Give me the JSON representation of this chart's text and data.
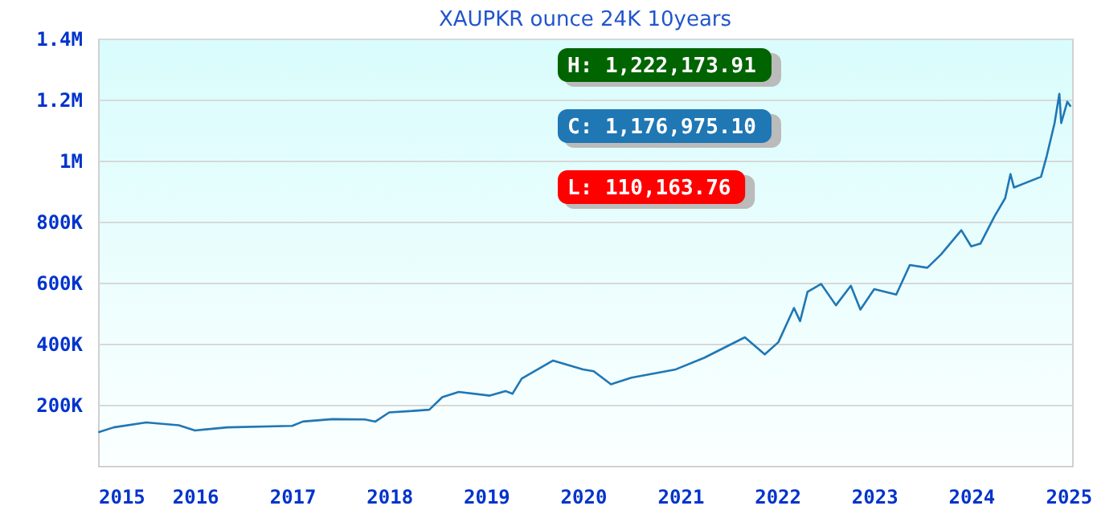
{
  "chart_data": {
    "type": "line",
    "title": "XAUPKR ounce 24K 10years",
    "annotations": [
      "H: 1,222,173.91",
      "C: 1,176,975.10",
      "L: 110,163.76"
    ],
    "x": [
      "2015-01-02",
      "2015-03-01",
      "2015-07-01",
      "2015-11-01",
      "2016-01-01",
      "2016-05-01",
      "2017-01-01",
      "2017-02-10",
      "2017-06-01",
      "2017-10-01",
      "2017-11-10",
      "2018-01-01",
      "2018-04-01",
      "2018-06-01",
      "2018-07-20",
      "2018-09-20",
      "2019-01-15",
      "2019-03-15",
      "2019-04-10",
      "2019-05-15",
      "2019-09-10",
      "2020-01-01",
      "2020-02-10",
      "2020-04-15",
      "2020-07-01",
      "2020-12-15",
      "2021-04-01",
      "2021-09-01",
      "2021-11-15",
      "2022-01-05",
      "2022-03-05",
      "2022-03-28",
      "2022-04-25",
      "2022-06-15",
      "2022-08-10",
      "2022-10-05",
      "2022-11-10",
      "2023-01-01",
      "2023-03-25",
      "2023-05-15",
      "2023-07-20",
      "2023-09-10",
      "2023-11-25",
      "2024-01-01",
      "2024-02-05",
      "2024-03-28",
      "2024-05-08",
      "2024-05-28",
      "2024-06-10",
      "2024-09-20",
      "2024-10-12",
      "2024-11-10",
      "2024-11-28",
      "2024-12-05",
      "2024-12-28",
      "2025-01-10"
    ],
    "series": [
      {
        "color": "#1f77b4",
        "values": [
          110000,
          126000,
          142000,
          133000,
          116000,
          126000,
          131000,
          145000,
          153000,
          152000,
          145000,
          175000,
          180000,
          184000,
          225000,
          242000,
          230000,
          245000,
          236000,
          286000,
          345000,
          316000,
          310000,
          267000,
          289000,
          316000,
          354000,
          421000,
          365000,
          405000,
          517000,
          474000,
          570000,
          596000,
          526000,
          590000,
          512000,
          579000,
          561000,
          658000,
          649000,
          693000,
          772000,
          719000,
          728000,
          816000,
          877000,
          956000,
          912000,
          947000,
          1017000,
          1123000,
          1219000,
          1123000,
          1193000,
          1177000
        ]
      }
    ],
    "xlim": [
      "2015-01-01",
      "2025-01-15"
    ],
    "xticks": [
      "2015",
      "2016",
      "2017",
      "2018",
      "2019",
      "2020",
      "2021",
      "2022",
      "2023",
      "2024",
      "2025"
    ],
    "ylim": [
      0,
      1400000
    ],
    "yticks": [
      {
        "value": 200000,
        "label": "200K"
      },
      {
        "value": 400000,
        "label": "400K"
      },
      {
        "value": 600000,
        "label": "600K"
      },
      {
        "value": 800000,
        "label": "800K"
      },
      {
        "value": 1000000,
        "label": "1M"
      },
      {
        "value": 1200000,
        "label": "1.2M"
      },
      {
        "value": 1400000,
        "label": "1.4M"
      }
    ],
    "grid": "y",
    "marker": "none",
    "line_style": "solid"
  }
}
